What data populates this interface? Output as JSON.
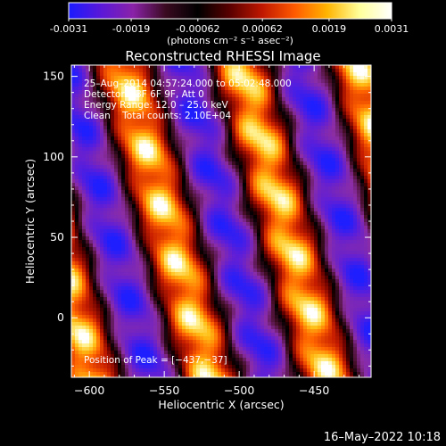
{
  "colorbar": {
    "tick_labels": [
      "-0.0031",
      "-0.0019",
      "-0.00062",
      "0.00062",
      "0.0019",
      "0.0031"
    ],
    "unit_label": "(photons cm⁻² s⁻¹ asec⁻²)",
    "range": [
      -0.0031,
      0.0031
    ],
    "gradient_colors": [
      "#1a1aff",
      "#5a18d8",
      "#8a22a8",
      "#3a0a20",
      "#000000",
      "#5a0000",
      "#c01800",
      "#ff5a00",
      "#ffb400",
      "#ffff9a",
      "#ffffff"
    ]
  },
  "chart_data": {
    "type": "heatmap",
    "title": "Reconstructed RHESSI Image",
    "xlabel": "Heliocentric X (arcsec)",
    "ylabel": "Heliocentric Y (arcsec)",
    "xlim": [
      -612,
      -412
    ],
    "ylim": [
      -37,
      157
    ],
    "xticks": [
      -600,
      -550,
      -500,
      -450
    ],
    "yticks": [
      0,
      50,
      100,
      150
    ],
    "xtick_labels": [
      "−600",
      "−550",
      "−500",
      "−450"
    ],
    "ytick_labels": [
      "0",
      "50",
      "100",
      "150"
    ],
    "info_lines": [
      "25–Aug–2014 04:57:24.000 to 05:02:48.000",
      "Detectors: 3F 6F 9F, Att 0",
      "Energy Range: 12.0 – 25.0 keV",
      "Clean    Total counts: 2.10E+04"
    ],
    "peak_label": "Position of Peak = [−437,−37]",
    "peak_position": [
      -437,
      -37
    ],
    "description_of_pattern": ""
  },
  "footer": {
    "timestamp": "16–May–2022 10:18"
  }
}
